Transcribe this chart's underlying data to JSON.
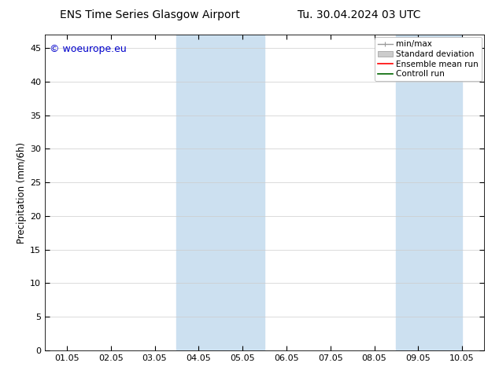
{
  "title_left": "ENS Time Series Glasgow Airport",
  "title_right": "Tu. 30.04.2024 03 UTC",
  "ylabel": "Precipitation (mm/6h)",
  "xlabel": "",
  "background_color": "#ffffff",
  "plot_bg_color": "#ffffff",
  "xtick_labels": [
    "01.05",
    "02.05",
    "03.05",
    "04.05",
    "05.05",
    "06.05",
    "07.05",
    "08.05",
    "09.05",
    "10.05"
  ],
  "xtick_positions": [
    0,
    1,
    2,
    3,
    4,
    5,
    6,
    7,
    8,
    9
  ],
  "ylim": [
    0,
    47
  ],
  "ytick_positions": [
    0,
    5,
    10,
    15,
    20,
    25,
    30,
    35,
    40,
    45
  ],
  "ytick_labels": [
    "0",
    "5",
    "10",
    "15",
    "20",
    "25",
    "30",
    "35",
    "40",
    "45"
  ],
  "shaded_regions": [
    {
      "x_start": 3.0,
      "x_end": 5.0,
      "color": "#cce0f0",
      "alpha": 1.0
    },
    {
      "x_start": 8.0,
      "x_end": 9.5,
      "color": "#cce0f0",
      "alpha": 1.0
    }
  ],
  "legend_entries": [
    {
      "label": "min/max",
      "color": "#999999",
      "type": "minmax"
    },
    {
      "label": "Standard deviation",
      "color": "#cccccc",
      "type": "band"
    },
    {
      "label": "Ensemble mean run",
      "color": "#ff0000",
      "type": "line"
    },
    {
      "label": "Controll run",
      "color": "#006600",
      "type": "line"
    }
  ],
  "watermark_text": "© woeurope.eu",
  "watermark_color": "#0000cc",
  "watermark_fontsize": 9,
  "title_fontsize": 10,
  "tick_fontsize": 8,
  "ylabel_fontsize": 8.5,
  "legend_fontsize": 7.5,
  "grid_color": "#cccccc",
  "grid_linewidth": 0.5,
  "border_color": "#000000",
  "xlim": [
    -0.5,
    9.5
  ]
}
